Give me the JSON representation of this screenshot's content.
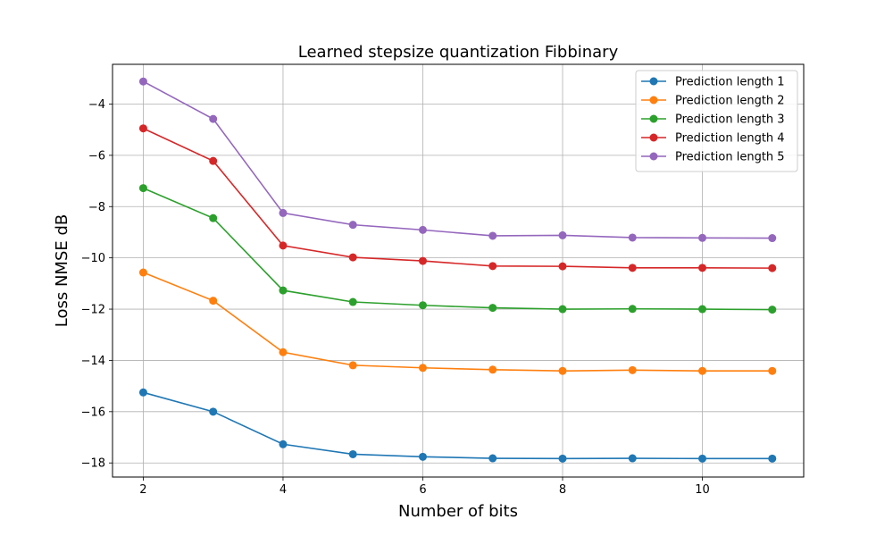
{
  "chart_data": {
    "type": "line",
    "title": "Learned stepsize quantization Fibbinary",
    "xlabel": "Number of bits",
    "ylabel": "Loss NMSE dB",
    "x": [
      2,
      3,
      4,
      5,
      6,
      7,
      8,
      9,
      10,
      11
    ],
    "xlim": [
      1.56,
      11.45
    ],
    "ylim": [
      -18.55,
      -2.45
    ],
    "xticks": [
      2,
      4,
      6,
      8,
      10
    ],
    "yticks": [
      -4,
      -6,
      -8,
      -10,
      -12,
      -14,
      -16,
      -18
    ],
    "grid": true,
    "legend_position": "top-right",
    "series": [
      {
        "name": "Prediction length 1",
        "color": "#1f77b4",
        "values": [
          -15.25,
          -16.0,
          -17.27,
          -17.66,
          -17.76,
          -17.82,
          -17.83,
          -17.82,
          -17.83,
          -17.83
        ]
      },
      {
        "name": "Prediction length 2",
        "color": "#ff7f0e",
        "values": [
          -10.57,
          -11.67,
          -13.68,
          -14.19,
          -14.29,
          -14.36,
          -14.41,
          -14.38,
          -14.41,
          -14.41
        ]
      },
      {
        "name": "Prediction length 3",
        "color": "#2ca02c",
        "values": [
          -7.28,
          -8.45,
          -11.27,
          -11.72,
          -11.85,
          -11.95,
          -12.0,
          -11.99,
          -12.0,
          -12.02
        ]
      },
      {
        "name": "Prediction length 4",
        "color": "#d62728",
        "values": [
          -4.95,
          -6.22,
          -9.52,
          -9.98,
          -10.12,
          -10.32,
          -10.33,
          -10.39,
          -10.39,
          -10.4
        ]
      },
      {
        "name": "Prediction length 5",
        "color": "#9467bd",
        "values": [
          -3.12,
          -4.58,
          -8.25,
          -8.71,
          -8.91,
          -9.14,
          -9.12,
          -9.21,
          -9.22,
          -9.23
        ]
      }
    ]
  }
}
